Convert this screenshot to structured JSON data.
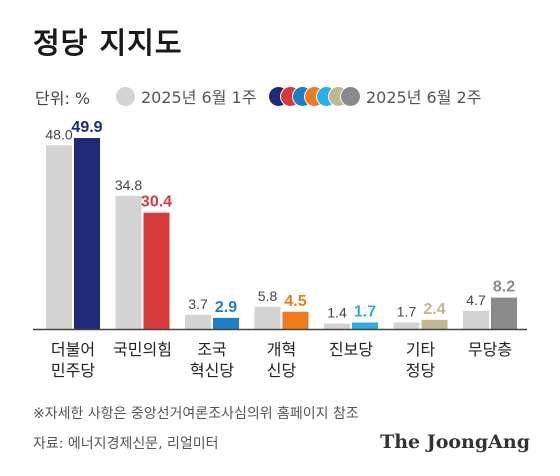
{
  "title": "정당 지지도",
  "unit_label": "단위: %",
  "legend": {
    "prev_label": "2025년 6월 1주",
    "curr_label": "2025년 6월 2주",
    "prev_color": "#d3d3d3",
    "curr_colors": [
      "#1e2a78",
      "#d63a3a",
      "#1a7fc4",
      "#f07b1c",
      "#2aaee3",
      "#bfb890",
      "#8a8a8a"
    ]
  },
  "chart_data": {
    "type": "bar",
    "categories": [
      "더불어\n민주당",
      "국민의힘",
      "조국\n혁신당",
      "개혁\n신당",
      "진보당",
      "기타\n정당",
      "무당층"
    ],
    "series": [
      {
        "name": "2025년 6월 1주",
        "values": [
          48.0,
          34.8,
          3.7,
          5.8,
          1.4,
          1.7,
          4.7
        ],
        "color": "#d3d3d3"
      },
      {
        "name": "2025년 6월 2주",
        "values": [
          49.9,
          30.4,
          2.9,
          4.5,
          1.7,
          2.4,
          8.2
        ],
        "colors": [
          "#1e2a78",
          "#d63a3a",
          "#1a7fc4",
          "#f07b1c",
          "#2aaee3",
          "#bfb890",
          "#8a8a8a"
        ]
      }
    ],
    "value_labels_prev": [
      "48.0",
      "34.8",
      "3.7",
      "5.8",
      "1.4",
      "1.7",
      "4.7"
    ],
    "value_labels_curr": [
      "49.9",
      "30.4",
      "2.9",
      "4.5",
      "1.7",
      "2.4",
      "8.2"
    ],
    "ylim": [
      0,
      52
    ],
    "grid": false,
    "legend_position": "top"
  },
  "footer": {
    "note": "※자세한 사항은 중앙선거여론조사심의위 홈페이지 참조",
    "source": "자료: 에너지경제신문, 리얼미터",
    "logo": "The JoongAng"
  }
}
